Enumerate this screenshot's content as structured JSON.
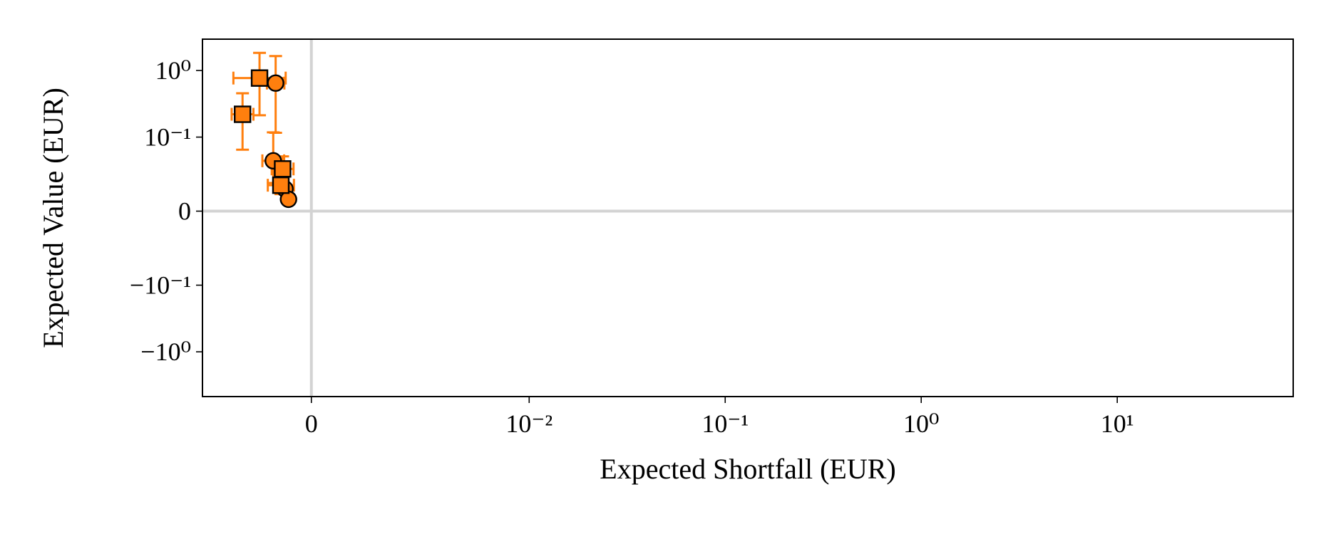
{
  "chart_data": {
    "type": "scatter",
    "x_label": "Expected Shortfall (EUR)",
    "y_label": "Expected Value (EUR)",
    "xscale": "symlog",
    "xlinthresh": 0.01,
    "yscale": "symlog",
    "ylinthresh": 0.1,
    "xlim": [
      -0.005,
      79
    ],
    "ylim": [
      -4.7,
      2.95
    ],
    "xticks": [
      0,
      {
        "value": 0.01,
        "label": "10⁻²"
      },
      {
        "value": 0.1,
        "label": "10⁻¹"
      },
      {
        "value": 1,
        "label": "10⁰"
      },
      {
        "value": 10,
        "label": "10¹"
      }
    ],
    "yticks": [
      {
        "value": -1,
        "label": "−10⁰"
      },
      {
        "value": -0.1,
        "label": "−10⁻¹"
      },
      0,
      {
        "value": 0.1,
        "label": "10⁻¹"
      },
      {
        "value": 1,
        "label": "10⁰"
      }
    ],
    "zero_lines": true,
    "series": [
      {
        "marker": "circle",
        "color": "#ff7f0e",
        "edgecolor": "#000000",
        "x": [
          -0.00164,
          -0.00175,
          -0.00121,
          -0.00105
        ],
        "values": [
          0.646,
          0.068,
          0.03,
          0.016
        ],
        "xerr": [
          0.0004,
          0.0005,
          0.0002,
          0.0001
        ],
        "yerr_minus": [
          0.53,
          0.03,
          0.005,
          0.003
        ],
        "yerr_plus": [
          1.0,
          0.05,
          0.005,
          0.003
        ]
      },
      {
        "marker": "square",
        "color": "#ff7f0e",
        "edgecolor": "#000000",
        "x": [
          -0.00238,
          -0.00316,
          -0.00132,
          -0.0014
        ],
        "values": [
          0.769,
          0.22,
          0.057,
          0.035
        ],
        "xerr": [
          0.0012,
          0.0005,
          0.0005,
          0.0006
        ],
        "yerr_minus": [
          0.556,
          0.137,
          0.015,
          0.012
        ],
        "yerr_plus": [
          1.07,
          0.235,
          0.017,
          0.012
        ]
      }
    ]
  }
}
